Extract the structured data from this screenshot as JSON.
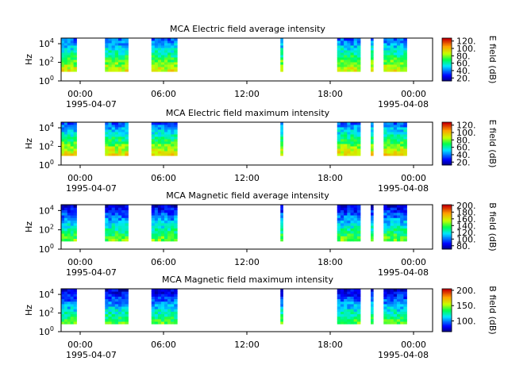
{
  "chart_data": [
    {
      "type": "heatmap",
      "title": "MCA  Electric field average intensity",
      "ylabel": "Hz",
      "yscale": "log",
      "ylim": [
        1,
        40000
      ],
      "xlim": [
        "1995-04-07T00:00",
        "1995-04-08T00:00"
      ],
      "colorbar": {
        "label": "E field (dB)",
        "ticks": [
          "20.",
          "40.",
          "60.",
          "80.",
          "100.",
          "120."
        ],
        "range": [
          12,
          128
        ]
      },
      "bursts": [
        {
          "start": "00:00",
          "end": "01:00"
        },
        {
          "start": "02:50",
          "end": "04:20"
        },
        {
          "start": "05:50",
          "end": "07:30"
        },
        {
          "start": "14:10",
          "end": "14:20"
        },
        {
          "start": "17:50",
          "end": "19:20"
        },
        {
          "start": "20:00",
          "end": "20:10"
        },
        {
          "start": "20:50",
          "end": "22:20"
        }
      ]
    },
    {
      "type": "heatmap",
      "title": "MCA  Electric field maximum intensity",
      "ylabel": "Hz",
      "yscale": "log",
      "ylim": [
        1,
        40000
      ],
      "xlim": [
        "1995-04-07T00:00",
        "1995-04-08T00:00"
      ],
      "colorbar": {
        "label": "E field (dB)",
        "ticks": [
          "20.",
          "40.",
          "60.",
          "80.",
          "100.",
          "120."
        ],
        "range": [
          12,
          128
        ]
      },
      "bursts": [
        {
          "start": "00:00",
          "end": "01:00"
        },
        {
          "start": "02:50",
          "end": "04:20"
        },
        {
          "start": "05:50",
          "end": "07:30"
        },
        {
          "start": "14:10",
          "end": "14:20"
        },
        {
          "start": "17:50",
          "end": "19:20"
        },
        {
          "start": "20:00",
          "end": "20:10"
        },
        {
          "start": "20:50",
          "end": "22:20"
        }
      ]
    },
    {
      "type": "heatmap",
      "title": "MCA  Magnetic field average intensity",
      "ylabel": "Hz",
      "yscale": "log",
      "ylim": [
        1,
        40000
      ],
      "xlim": [
        "1995-04-07T00:00",
        "1995-04-08T00:00"
      ],
      "colorbar": {
        "label": "B field (dB)",
        "ticks": [
          "80.",
          "100.",
          "120.",
          "140.",
          "160.",
          "180.",
          "200."
        ],
        "range": [
          70,
          202
        ]
      },
      "bursts": [
        {
          "start": "00:00",
          "end": "01:00"
        },
        {
          "start": "02:50",
          "end": "04:20"
        },
        {
          "start": "05:50",
          "end": "07:30"
        },
        {
          "start": "14:10",
          "end": "14:20"
        },
        {
          "start": "17:50",
          "end": "19:20"
        },
        {
          "start": "20:00",
          "end": "20:10"
        },
        {
          "start": "20:50",
          "end": "22:20"
        }
      ]
    },
    {
      "type": "heatmap",
      "title": "MCA  Magnetic field maximum intensity",
      "ylabel": "Hz",
      "yscale": "log",
      "ylim": [
        1,
        40000
      ],
      "xlim": [
        "1995-04-07T00:00",
        "1995-04-08T00:00"
      ],
      "colorbar": {
        "label": "B field (dB)",
        "ticks": [
          "100.",
          "150.",
          "200."
        ],
        "range": [
          65,
          205
        ]
      },
      "bursts": [
        {
          "start": "00:00",
          "end": "01:00"
        },
        {
          "start": "02:50",
          "end": "04:20"
        },
        {
          "start": "05:50",
          "end": "07:30"
        },
        {
          "start": "14:10",
          "end": "14:20"
        },
        {
          "start": "17:50",
          "end": "19:20"
        },
        {
          "start": "20:00",
          "end": "20:10"
        },
        {
          "start": "20:50",
          "end": "22:20"
        }
      ]
    }
  ],
  "axes": {
    "x_ticks": [
      "00:00",
      "06:00",
      "12:00",
      "18:00",
      "00:00"
    ],
    "x_start_date": "1995-04-07",
    "x_end_date": "1995-04-08",
    "y_ticks": [
      {
        "base": "10",
        "exp": "0"
      },
      {
        "base": "10",
        "exp": "2"
      },
      {
        "base": "10",
        "exp": "4"
      }
    ]
  }
}
